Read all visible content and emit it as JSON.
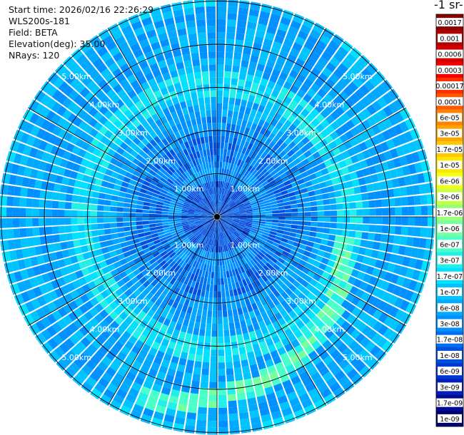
{
  "header": {
    "start_time": "Start time: 2026/02/16 22:26:29",
    "instrument": "WLS200s-181",
    "field": "Field: BETA",
    "elevation": "Elevation(deg): 35.00",
    "nrays": "NRays: 120"
  },
  "colorbar": {
    "unit_label": "-1 sr-",
    "labels": [
      "0.0017",
      "0.001",
      "0.0006",
      "0.0003",
      "0.00017",
      "0.0001",
      "6e-05",
      "3e-05",
      "1.7e-05",
      "1e-05",
      "6e-06",
      "3e-06",
      "1.7e-06",
      "1e-06",
      "6e-07",
      "3e-07",
      "1.7e-07",
      "1e-07",
      "6e-08",
      "3e-08",
      "1.7e-08",
      "1e-08",
      "6e-09",
      "3e-09",
      "1.7e-09",
      "1e-09"
    ],
    "colors": [
      "#8b0000",
      "#b00000",
      "#d40000",
      "#f20000",
      "#ff3000",
      "#ff5a00",
      "#ff8200",
      "#ffa500",
      "#ffc800",
      "#ffe600",
      "#f2ff1a",
      "#c8ff4a",
      "#9cff78",
      "#78ffa0",
      "#4affc8",
      "#20f0e8",
      "#00e0ff",
      "#00c4ff",
      "#00a8ff",
      "#0090ff",
      "#0070f0",
      "#0050e0",
      "#0038d0",
      "#0020b8",
      "#000c98",
      "#000078"
    ]
  },
  "chart_data": {
    "type": "heatmap",
    "projection": "polar (PPI scan)",
    "field": "BETA",
    "elevation_deg": 35.0,
    "n_rays": 120,
    "range_ring_labels": [
      "1.00km",
      "2.00km",
      "3.00km",
      "4.00km",
      "5.00km"
    ],
    "range_rings_km": [
      1,
      2,
      3,
      4,
      5
    ],
    "azimuth_spokes_deg": [
      0,
      30,
      60,
      90,
      120,
      150,
      180,
      210,
      240,
      270,
      300,
      330
    ],
    "value_scale": "log",
    "value_range": [
      1e-09,
      0.0017
    ],
    "radial_profile_by_range_km": [
      {
        "range_km": 0.5,
        "level": "1e-08"
      },
      {
        "range_km": 1.0,
        "level": "3e-08"
      },
      {
        "range_km": 1.5,
        "level": "1.7e-08"
      },
      {
        "range_km": 2.0,
        "level": "3e-08"
      },
      {
        "range_km": 2.5,
        "level": "6e-08"
      },
      {
        "range_km": 3.0,
        "level": "1.7e-07"
      },
      {
        "range_km": 3.5,
        "level": "6e-08"
      },
      {
        "range_km": 4.0,
        "level": "6e-08"
      },
      {
        "range_km": 4.5,
        "level": "6e-08"
      },
      {
        "range_km": 5.0,
        "level": "1e-07"
      }
    ],
    "feature": {
      "description_level": "1e-06",
      "azimuth_deg": [
        100,
        205
      ],
      "range_km": [
        2.9,
        4.5
      ]
    }
  }
}
